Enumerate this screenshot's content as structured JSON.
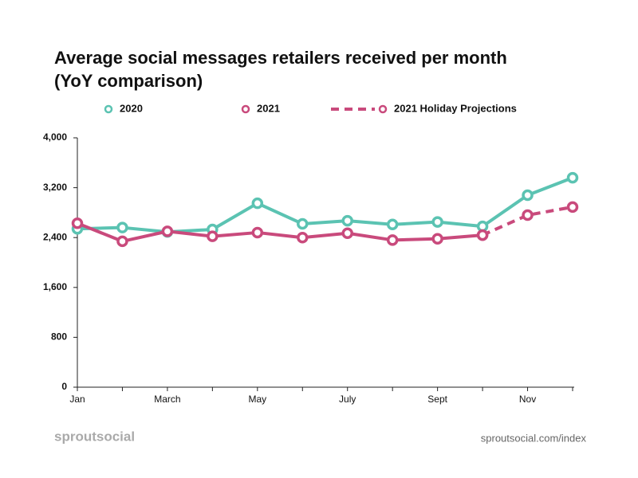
{
  "chart_data": {
    "type": "line",
    "title": [
      "Average social messages retailers received per month",
      "(YoY comparison)"
    ],
    "categories": [
      "Jan",
      null,
      "March",
      null,
      "May",
      null,
      "July",
      null,
      "Sept",
      null,
      "Nov",
      null
    ],
    "series": [
      {
        "name": "2020",
        "color": "#5bc3b2",
        "style": "solid",
        "values": [
          2540,
          2560,
          2490,
          2530,
          2950,
          2620,
          2670,
          2610,
          2650,
          2580,
          3080,
          3360
        ]
      },
      {
        "name": "2021",
        "color": "#c94a7c",
        "style": "solid",
        "values": [
          2630,
          2340,
          2500,
          2420,
          2480,
          2400,
          2470,
          2360,
          2380,
          2440,
          null,
          null
        ]
      },
      {
        "name": "2021 Holiday Projections",
        "color": "#c94a7c",
        "style": "dashed",
        "values": [
          null,
          null,
          null,
          null,
          null,
          null,
          null,
          null,
          null,
          2440,
          2760,
          2890
        ]
      }
    ],
    "ylim": [
      0,
      4000
    ],
    "yticks": [
      0,
      {
        "value": 800,
        "label": "800"
      },
      {
        "value": 1600,
        "label": "1,600"
      },
      {
        "value": 2400,
        "label": "2,400"
      },
      {
        "value": 3200,
        "label": "3,200"
      },
      {
        "value": 4000,
        "label": "4,000"
      }
    ],
    "grid": false,
    "brand": "sproutsocial",
    "source": "sproutsocial.com/index"
  }
}
